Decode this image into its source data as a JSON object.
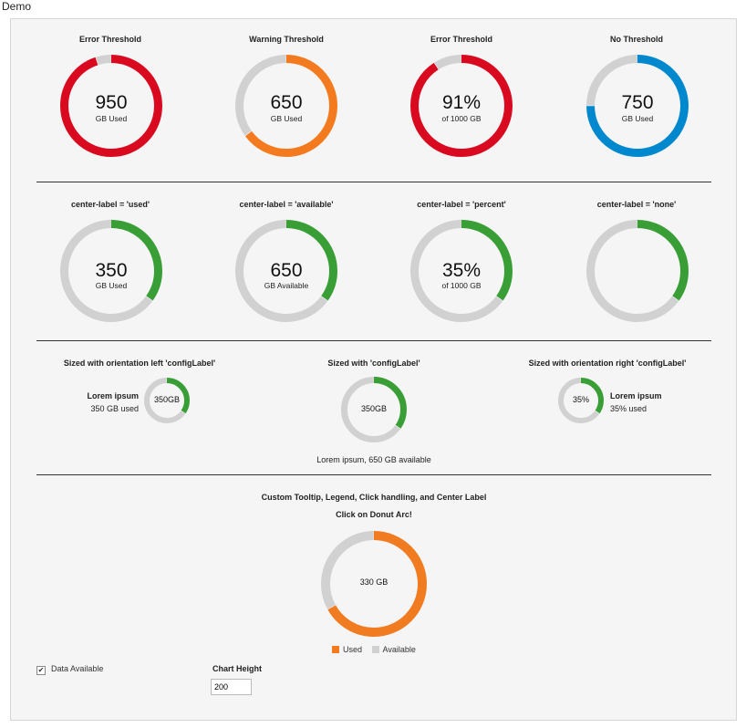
{
  "page": {
    "title": "Demo"
  },
  "colors": {
    "error": "#d9091f",
    "warning": "#f47a1f",
    "blue": "#0088ce",
    "green": "#3a9e36",
    "orange": "#f07b21",
    "gray": "#d1d1d1"
  },
  "chart_data": [
    {
      "type": "pie",
      "variant": "donut",
      "title": "Error Threshold",
      "used": 950,
      "total": 1000,
      "color": "error",
      "center_value": "950",
      "center_label": "GB Used"
    },
    {
      "type": "pie",
      "variant": "donut",
      "title": "Warning Threshold",
      "used": 650,
      "total": 1000,
      "color": "warning",
      "center_value": "650",
      "center_label": "GB Used"
    },
    {
      "type": "pie",
      "variant": "donut",
      "title": "Error Threshold",
      "used": 910,
      "total": 1000,
      "color": "error",
      "center_value": "91%",
      "center_label": "of 1000 GB"
    },
    {
      "type": "pie",
      "variant": "donut",
      "title": "No Threshold",
      "used": 750,
      "total": 1000,
      "color": "blue",
      "center_value": "750",
      "center_label": "GB Used"
    },
    {
      "type": "pie",
      "variant": "donut",
      "title": "center-label = 'used'",
      "used": 350,
      "total": 1000,
      "color": "green",
      "center_value": "350",
      "center_label": "GB Used"
    },
    {
      "type": "pie",
      "variant": "donut",
      "title": "center-label = 'available'",
      "used": 350,
      "total": 1000,
      "color": "green",
      "center_value": "650",
      "center_label": "GB Available"
    },
    {
      "type": "pie",
      "variant": "donut",
      "title": "center-label = 'percent'",
      "used": 350,
      "total": 1000,
      "color": "green",
      "center_value": "35%",
      "center_label": "of 1000 GB"
    },
    {
      "type": "pie",
      "variant": "donut",
      "title": "center-label = 'none'",
      "used": 350,
      "total": 1000,
      "color": "green",
      "center_value": "",
      "center_label": ""
    },
    {
      "type": "pie",
      "variant": "donut",
      "title": "Sized with orientation left 'configLabel'",
      "used": 350,
      "total": 1000,
      "color": "green",
      "center_text": "350GB",
      "label_title": "Lorem ipsum",
      "label_text": "350 GB used"
    },
    {
      "type": "pie",
      "variant": "donut",
      "title": "Sized with 'configLabel'",
      "used": 350,
      "total": 1000,
      "color": "green",
      "center_text": "350GB",
      "label_text": "Lorem ipsum, 650 GB available"
    },
    {
      "type": "pie",
      "variant": "donut",
      "title": "Sized with orientation right 'configLabel'",
      "used": 350,
      "total": 1000,
      "color": "green",
      "center_text": "35%",
      "label_title": "Lorem ipsum",
      "label_text": "35% used"
    },
    {
      "type": "pie",
      "variant": "donut",
      "title": "Custom Tooltip, Legend, Click handling, and Center Label",
      "subtitle": "Click on Donut Arc!",
      "used": 670,
      "total": 1000,
      "color": "orange",
      "center_text": "330 GB",
      "legend": [
        {
          "label": "Used",
          "color": "orange"
        },
        {
          "label": "Available",
          "color": "gray"
        }
      ]
    }
  ],
  "controls": {
    "data_available_label": "Data Available",
    "data_available_checked": true,
    "chart_height_label": "Chart Height",
    "chart_height_value": "200"
  }
}
